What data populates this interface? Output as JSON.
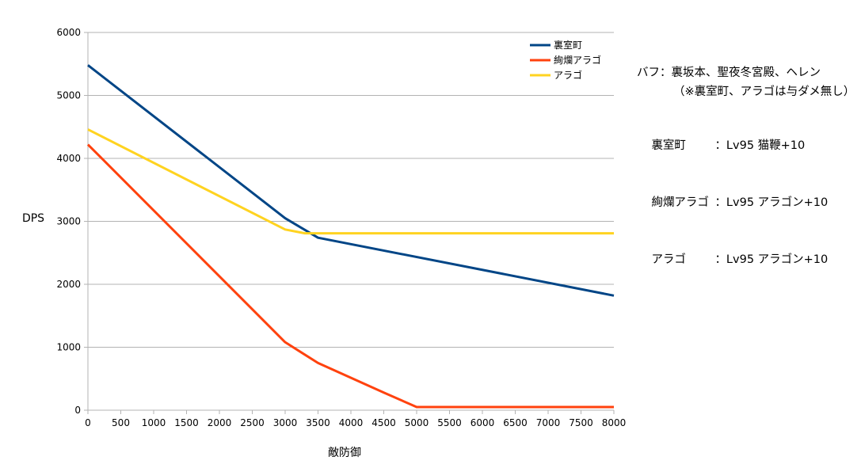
{
  "chart_data": {
    "type": "line",
    "title": "",
    "xlabel": "敵防御",
    "ylabel": "DPS",
    "xlim": [
      0,
      8000
    ],
    "ylim": [
      0,
      6000
    ],
    "xticks": [
      0,
      500,
      1000,
      1500,
      2000,
      2500,
      3000,
      3500,
      4000,
      4500,
      5000,
      5500,
      6000,
      6500,
      7000,
      7500,
      8000
    ],
    "yticks": [
      0,
      1000,
      2000,
      3000,
      4000,
      5000,
      6000
    ],
    "grid": "horizontal",
    "legend_position": "top-right",
    "series": [
      {
        "name": "裏室町",
        "color": "#004586",
        "x": [
          0,
          3000,
          3500,
          8000
        ],
        "y": [
          5480,
          3050,
          2740,
          1820
        ]
      },
      {
        "name": "絢爛アラゴ",
        "color": "#ff420e",
        "x": [
          0,
          3000,
          3500,
          4500,
          5000,
          8000
        ],
        "y": [
          4220,
          1080,
          750,
          280,
          50,
          50
        ]
      },
      {
        "name": "アラゴ",
        "color": "#ffd320",
        "x": [
          0,
          3000,
          3300,
          8000
        ],
        "y": [
          4460,
          2870,
          2810,
          2810
        ]
      }
    ]
  },
  "notes": {
    "buff_line": "バフ：裏坂本、聖夜冬宮殿、ヘレン",
    "buff_note": "（※裏室町、アラゴは与ダメ無し）",
    "units": [
      {
        "name": "裏室町",
        "detail": "：Lv95 猫鞭+10"
      },
      {
        "name": "絢爛アラゴ",
        "detail": "：Lv95 アラゴン+10"
      },
      {
        "name": "アラゴ",
        "detail": "：Lv95 アラゴン+10"
      }
    ]
  }
}
